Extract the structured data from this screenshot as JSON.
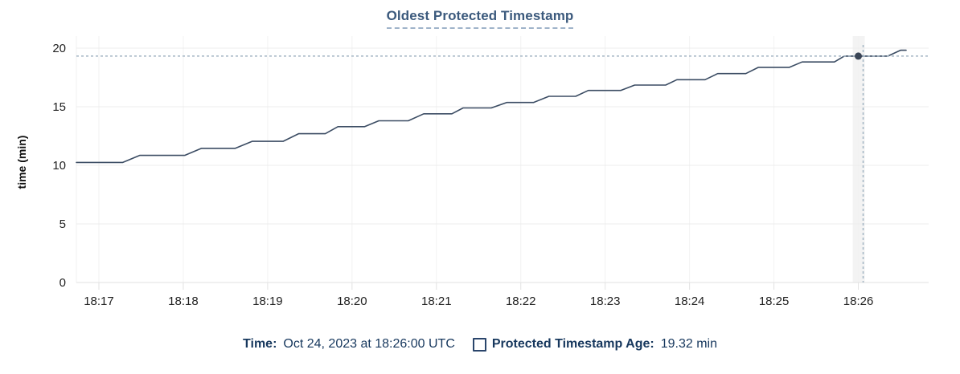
{
  "title": "Oldest Protected Timestamp",
  "y_axis_label": "time (min)",
  "footer": {
    "time_label": "Time:",
    "time_value": "Oct 24, 2023 at 18:26:00 UTC",
    "series_label": "Protected Timestamp Age:",
    "series_value": "19.32 min"
  },
  "colors": {
    "background": "#ffffff",
    "title_text": "#3c5a7d",
    "title_underline": "#9fb3c9",
    "line": "#3b4c63",
    "marker": "#394455",
    "crosshair": "#a3b5c4",
    "grid_horizontal": "#ececec",
    "grid_vertical": "#f2f2f2",
    "axis_line": "#e2e2e2",
    "tick_mark": "#e2e2e2",
    "tick_text": "#222222",
    "axis_title_text": "#111111",
    "legend_text": "#16375d",
    "hover_band": "#f3f3f3"
  },
  "chart_data": {
    "type": "line",
    "title": "Oldest Protected Timestamp",
    "xlabel": "",
    "ylabel": "time (min)",
    "grid": true,
    "legend_position": "bottom",
    "ylim": [
      0,
      20
    ],
    "y_ticks": [
      0,
      5,
      10,
      15,
      20
    ],
    "x_range": [
      "18:16:44",
      "18:26:50"
    ],
    "x_ticks": [
      {
        "label": "18:17",
        "time": "18:17:00"
      },
      {
        "label": "18:18",
        "time": "18:18:00"
      },
      {
        "label": "18:19",
        "time": "18:19:00"
      },
      {
        "label": "18:20",
        "time": "18:20:00"
      },
      {
        "label": "18:21",
        "time": "18:21:00"
      },
      {
        "label": "18:22",
        "time": "18:22:00"
      },
      {
        "label": "18:23",
        "time": "18:23:00"
      },
      {
        "label": "18:24",
        "time": "18:24:00"
      },
      {
        "label": "18:25",
        "time": "18:25:00"
      },
      {
        "label": "18:26",
        "time": "18:26:00"
      }
    ],
    "series": [
      {
        "name": "Protected Timestamp Age",
        "unit": "min",
        "points": [
          [
            "18:16:44",
            10.25
          ],
          [
            "18:17:17",
            10.25
          ],
          [
            "18:17:29",
            10.85
          ],
          [
            "18:18:01",
            10.85
          ],
          [
            "18:18:13",
            11.45
          ],
          [
            "18:18:37",
            11.45
          ],
          [
            "18:18:49",
            12.05
          ],
          [
            "18:19:11",
            12.05
          ],
          [
            "18:19:22",
            12.7
          ],
          [
            "18:19:41",
            12.7
          ],
          [
            "18:19:50",
            13.3
          ],
          [
            "18:20:09",
            13.3
          ],
          [
            "18:20:19",
            13.8
          ],
          [
            "18:20:40",
            13.8
          ],
          [
            "18:20:51",
            14.4
          ],
          [
            "18:21:11",
            14.4
          ],
          [
            "18:21:19",
            14.9
          ],
          [
            "18:21:39",
            14.9
          ],
          [
            "18:21:50",
            15.36
          ],
          [
            "18:22:09",
            15.36
          ],
          [
            "18:22:20",
            15.89
          ],
          [
            "18:22:39",
            15.89
          ],
          [
            "18:22:48",
            16.39
          ],
          [
            "18:23:11",
            16.39
          ],
          [
            "18:23:21",
            16.85
          ],
          [
            "18:23:43",
            16.85
          ],
          [
            "18:23:51",
            17.31
          ],
          [
            "18:24:11",
            17.31
          ],
          [
            "18:24:20",
            17.83
          ],
          [
            "18:24:40",
            17.83
          ],
          [
            "18:24:49",
            18.36
          ],
          [
            "18:25:11",
            18.36
          ],
          [
            "18:25:20",
            18.82
          ],
          [
            "18:25:43",
            18.82
          ],
          [
            "18:25:50",
            19.32
          ],
          [
            "18:26:21",
            19.32
          ],
          [
            "18:26:30",
            19.82
          ],
          [
            "18:26:34",
            19.82
          ]
        ]
      }
    ],
    "crosshair": {
      "time": "18:26:00",
      "value": 19.32,
      "time_display": "Oct 24, 2023 at 18:26:00 UTC",
      "value_display": "19.32 min"
    }
  }
}
